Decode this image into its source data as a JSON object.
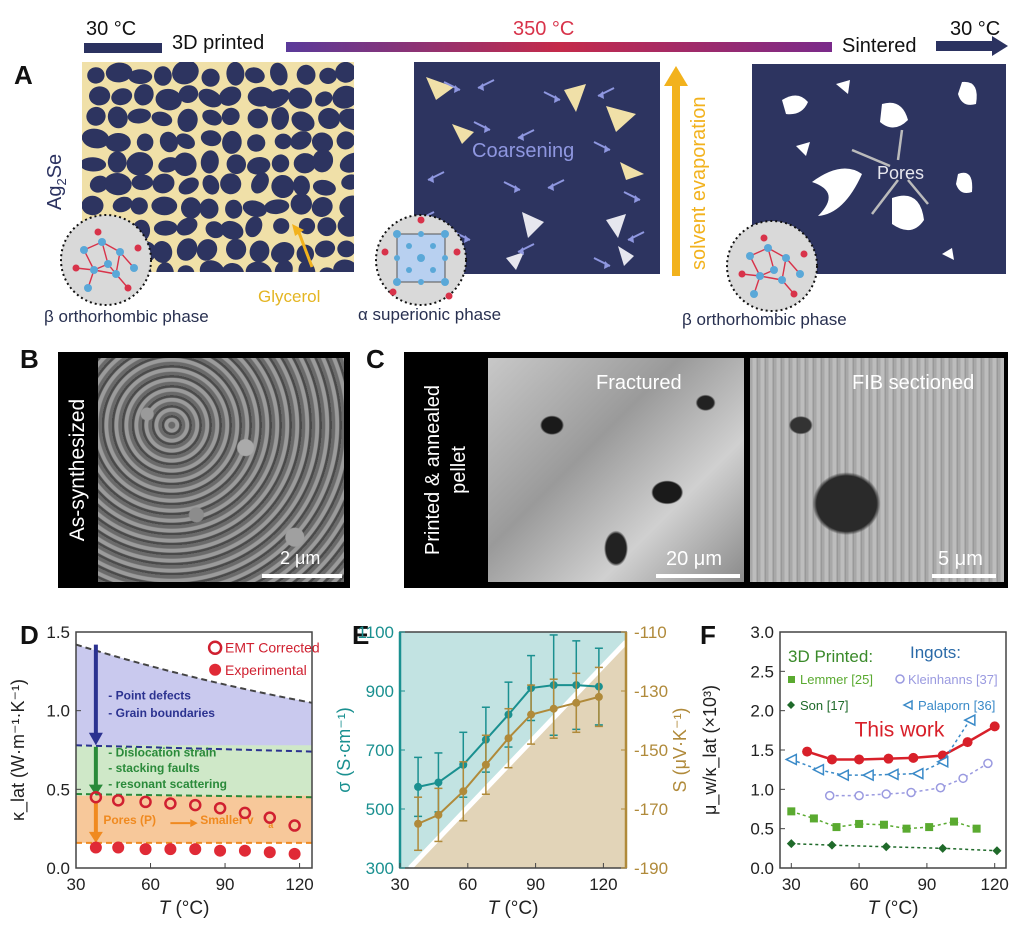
{
  "panelA": {
    "letter": "A",
    "timeline": {
      "start_temp": "30 °C",
      "stage1": "3D printed",
      "mid_temp": "350 °C",
      "stage3": "Sintered",
      "end_temp": "30 °C"
    },
    "material_label_main": "Ag",
    "material_label_sub": "2",
    "material_label_end": "Se",
    "glycerol": "Glycerol",
    "coarsening": "Coarsening",
    "evaporation": "solvent evaporation",
    "pores": "Pores",
    "phase1": "β  orthorhombic phase",
    "phase2": "α superionic phase",
    "phase3": "β  orthorhombic phase"
  },
  "panelB": {
    "letter": "B",
    "label": "As-synthesized",
    "scale": "2 μm"
  },
  "panelC": {
    "letter": "C",
    "label_line1": "Printed & annealed",
    "label_line2": "pellet",
    "img1": "Fractured",
    "img2": "FIB sectioned",
    "scale1": "20 μm",
    "scale2": "5 μm"
  },
  "chart_data": [
    {
      "panel": "D",
      "type": "scatter",
      "xlabel_italic": "T",
      "xlabel_unit": " (°C)",
      "ylabel": "κ_lat (W·m⁻¹·K⁻¹)",
      "xlim": [
        30,
        125
      ],
      "ylim": [
        0,
        1.5
      ],
      "xticks": [
        "30",
        "60",
        "90",
        "120"
      ],
      "yticks": [
        "0.0",
        "0.5",
        "1.0",
        "1.5"
      ],
      "legend": [
        "EMT Corrected",
        "Experimental"
      ],
      "series": [
        {
          "name": "EMT Corrected",
          "x": [
            38,
            47,
            58,
            68,
            78,
            88,
            98,
            108,
            118
          ],
          "y": [
            0.45,
            0.43,
            0.42,
            0.41,
            0.4,
            0.38,
            0.35,
            0.32,
            0.27
          ]
        },
        {
          "name": "Experimental",
          "x": [
            38,
            47,
            58,
            68,
            78,
            88,
            98,
            108,
            118
          ],
          "y": [
            0.13,
            0.13,
            0.12,
            0.12,
            0.12,
            0.11,
            0.11,
            0.1,
            0.09
          ]
        }
      ],
      "annotations": [
        "- Point defects",
        "- Grain boundaries",
        "- Dislocation strain",
        "- stacking faults",
        "- resonant scattering",
        "Pores (P)",
        "Smaller v"
      ],
      "v_sub": "a"
    },
    {
      "panel": "E",
      "type": "line",
      "xlabel_italic": "T",
      "xlabel_unit": " (°C)",
      "ylabel_left": "σ (S·cm⁻¹)",
      "ylabel_right": "S (μV·K⁻¹)",
      "xlim": [
        30,
        130
      ],
      "ylim_left": [
        300,
        1100
      ],
      "ylim_right": [
        -190,
        -110
      ],
      "xticks": [
        "30",
        "60",
        "90",
        "120"
      ],
      "yticks_left": [
        "300",
        "500",
        "700",
        "900",
        "1100"
      ],
      "yticks_right": [
        "-190",
        "-170",
        "-150",
        "-130",
        "-110"
      ],
      "series": [
        {
          "name": "σ",
          "x": [
            38,
            47,
            58,
            68,
            78,
            88,
            98,
            108,
            118
          ],
          "y": [
            575,
            590,
            650,
            735,
            820,
            910,
            920,
            920,
            915
          ],
          "err": [
            100,
            100,
            110,
            110,
            110,
            110,
            170,
            150,
            130
          ]
        },
        {
          "name": "S",
          "x": [
            38,
            47,
            58,
            68,
            78,
            88,
            98,
            108,
            118
          ],
          "y": [
            -175,
            -172,
            -164,
            -155,
            -146,
            -138,
            -136,
            -134,
            -132
          ],
          "err": [
            9,
            9,
            10,
            10,
            10,
            10,
            10,
            10,
            10
          ]
        }
      ]
    },
    {
      "panel": "F",
      "type": "line",
      "xlabel_italic": "T",
      "xlabel_unit": " (°C)",
      "ylabel": "μ_w/κ_lat (×10³)",
      "xlim": [
        25,
        125
      ],
      "ylim": [
        0,
        3.0
      ],
      "xticks": [
        "30",
        "60",
        "90",
        "120"
      ],
      "yticks": [
        "0.0",
        "0.5",
        "1.0",
        "1.5",
        "2.0",
        "2.5",
        "3.0"
      ],
      "group_3d": "3D Printed:",
      "group_ingot": "Ingots:",
      "this_work": "This work",
      "series": [
        {
          "name": "This work",
          "x": [
            37,
            48,
            60,
            73,
            84,
            97,
            108,
            120
          ],
          "y": [
            1.48,
            1.38,
            1.38,
            1.39,
            1.4,
            1.43,
            1.6,
            1.8
          ]
        },
        {
          "name": "Lemmer [25]",
          "x": [
            30,
            40,
            50,
            60,
            71,
            81,
            91,
            102,
            112
          ],
          "y": [
            0.72,
            0.63,
            0.52,
            0.56,
            0.55,
            0.5,
            0.52,
            0.59,
            0.5
          ]
        },
        {
          "name": "Son [17]",
          "x": [
            30,
            48,
            72,
            97,
            121
          ],
          "y": [
            0.31,
            0.29,
            0.27,
            0.25,
            0.22
          ]
        },
        {
          "name": "Kleinhanns [37]",
          "x": [
            47,
            60,
            72,
            83,
            96,
            106,
            117
          ],
          "y": [
            0.92,
            0.92,
            0.94,
            0.96,
            1.02,
            1.14,
            1.33
          ]
        },
        {
          "name": "Palaporn [36]",
          "x": [
            30,
            42,
            53,
            64,
            75,
            86,
            97,
            109
          ],
          "y": [
            1.38,
            1.25,
            1.18,
            1.18,
            1.19,
            1.2,
            1.35,
            1.88
          ]
        }
      ]
    }
  ]
}
